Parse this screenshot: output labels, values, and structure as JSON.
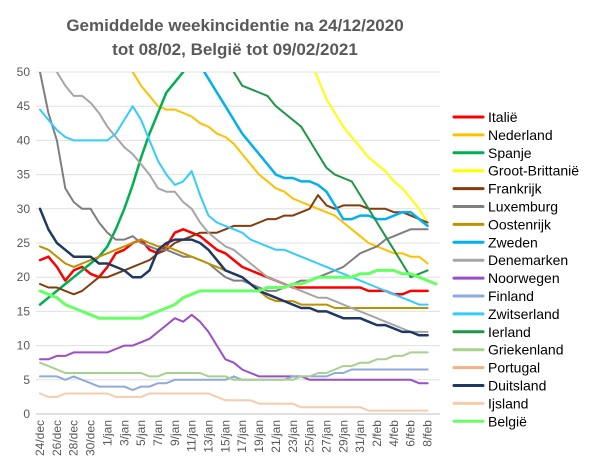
{
  "chart_data": {
    "type": "line",
    "title_lines": [
      "Gemiddelde weekincidentie  na 24/12/2020",
      "tot 08/02, België tot 09/02/2021"
    ],
    "x": [
      "24/dec",
      "25/dec",
      "26/dec",
      "27/dec",
      "28/dec",
      "29/dec",
      "30/dec",
      "31/dec",
      "1/jan",
      "2/jan",
      "3/jan",
      "4/jan",
      "5/jan",
      "6/jan",
      "7/jan",
      "8/jan",
      "9/jan",
      "10/jan",
      "11/jan",
      "12/jan",
      "13/jan",
      "14/jan",
      "15/jan",
      "16/jan",
      "17/jan",
      "18/jan",
      "19/jan",
      "20/jan",
      "21/jan",
      "22/jan",
      "23/jan",
      "24/jan",
      "25/jan",
      "26/jan",
      "27/jan",
      "28/jan",
      "29/jan",
      "30/jan",
      "31/jan",
      "1/feb",
      "2/feb",
      "3/feb",
      "4/feb",
      "5/feb",
      "6/feb",
      "7/feb",
      "8/feb",
      "9/feb"
    ],
    "x_tick_labels": [
      "24/dec",
      "26/dec",
      "28/dec",
      "30/dec",
      "1/jan",
      "3/jan",
      "5/jan",
      "7/jan",
      "9/jan",
      "11/jan",
      "13/jan",
      "15/jan",
      "17/jan",
      "19/jan",
      "21/jan",
      "23/jan",
      "25/jan",
      "27/jan",
      "29/jan",
      "31/jan",
      "2/feb",
      "4/feb",
      "6/feb",
      "8/feb"
    ],
    "ylim": [
      0,
      50
    ],
    "y_ticks": [
      0,
      5,
      10,
      15,
      20,
      25,
      30,
      35,
      40,
      45,
      50
    ],
    "grid": "horizontal",
    "legend_position": "right",
    "series": [
      {
        "name": "Italië",
        "color": "#ff0000",
        "width": 2.5,
        "values": [
          22.5,
          23,
          21.5,
          19.5,
          21,
          21.5,
          20.5,
          20,
          21.5,
          23.5,
          24,
          25,
          25.5,
          24,
          23.5,
          24.5,
          26.5,
          27,
          26.5,
          26,
          25,
          24,
          23.5,
          22.5,
          21.5,
          21,
          20.5,
          20,
          19.5,
          19,
          18.5,
          18.5,
          18.5,
          18.5,
          18.5,
          18.5,
          18.5,
          18.5,
          18.5,
          18,
          18,
          18,
          17.5,
          17.5,
          18,
          18,
          18,
          null
        ]
      },
      {
        "name": "Nederland",
        "color": "#ffc000",
        "width": 2,
        "values": [
          null,
          null,
          null,
          null,
          null,
          null,
          null,
          null,
          null,
          null,
          52,
          50,
          48,
          46.5,
          45,
          44.5,
          44.5,
          44,
          43.5,
          42.5,
          42,
          41,
          40.5,
          39.5,
          38,
          36.5,
          35,
          34,
          33,
          32.5,
          31.5,
          31,
          30.5,
          30,
          29.5,
          29,
          28,
          27,
          26,
          25,
          24.5,
          24,
          23.5,
          23.5,
          23,
          23,
          22,
          null
        ]
      },
      {
        "name": "Spanje",
        "color": "#00b050",
        "width": 2.5,
        "values": [
          16,
          17,
          18,
          19,
          20,
          21,
          22,
          23,
          24.5,
          27,
          30,
          33.5,
          37.5,
          41,
          44,
          47,
          48.5,
          50,
          52,
          null,
          null,
          null,
          null,
          null,
          null,
          null,
          null,
          null,
          null,
          null,
          null,
          null,
          null,
          null,
          null,
          null,
          null,
          null,
          null,
          null,
          null,
          null,
          null,
          null,
          null,
          null,
          null,
          null
        ]
      },
      {
        "name": "Groot-Brittanië",
        "color": "#ffff00",
        "width": 2,
        "values": [
          null,
          null,
          null,
          null,
          null,
          null,
          null,
          null,
          null,
          null,
          null,
          null,
          null,
          null,
          null,
          null,
          null,
          null,
          null,
          null,
          null,
          null,
          null,
          null,
          null,
          null,
          null,
          null,
          null,
          null,
          null,
          null,
          52,
          49,
          46,
          44,
          42,
          40.5,
          39,
          37.5,
          36.5,
          35.5,
          34,
          33,
          31.5,
          30,
          28,
          null
        ]
      },
      {
        "name": "Frankrijk",
        "color": "#843c0c",
        "width": 2,
        "values": [
          19,
          18.5,
          18.5,
          18,
          17.5,
          18,
          19,
          20,
          20,
          20.5,
          21,
          21.5,
          22,
          22.5,
          23.5,
          24,
          25,
          25.5,
          26,
          26.5,
          26.5,
          26.5,
          27,
          27.5,
          27.5,
          27.5,
          28,
          28.5,
          28.5,
          29,
          29,
          29.5,
          30,
          32,
          30.5,
          30,
          30.5,
          30.5,
          30.5,
          30,
          30,
          30,
          29.5,
          29.5,
          29,
          28.5,
          28,
          null
        ]
      },
      {
        "name": "Luxemburg",
        "color": "#7f7f7f",
        "width": 2,
        "values": [
          50,
          44,
          40,
          33,
          31,
          30,
          30,
          28,
          26.5,
          25.5,
          25.5,
          26,
          25,
          24.5,
          24,
          24,
          23.5,
          23,
          23,
          22.5,
          22,
          21,
          20,
          19.5,
          19.5,
          19,
          18.5,
          18,
          18,
          18.5,
          19,
          19.5,
          19.5,
          20,
          20.5,
          21,
          21.5,
          22.5,
          23.5,
          24,
          24.5,
          25.5,
          26,
          26.5,
          27,
          27,
          27,
          null
        ]
      },
      {
        "name": "Oostenrijk",
        "color": "#bf9000",
        "width": 2,
        "values": [
          24.5,
          24,
          23,
          22,
          21.5,
          22,
          22.5,
          23,
          23.5,
          24,
          24.5,
          25,
          25.5,
          25,
          24.5,
          24.5,
          24,
          23.5,
          23,
          22.5,
          22,
          21.5,
          21,
          20.5,
          20,
          19,
          18,
          17,
          16.5,
          16.5,
          16.5,
          16,
          16,
          16,
          16,
          15.5,
          15.5,
          15.5,
          15.5,
          15.5,
          15.5,
          15.5,
          15.5,
          15.5,
          15.5,
          15.5,
          15.5,
          null
        ]
      },
      {
        "name": "Zweden",
        "color": "#00b0f0",
        "width": 2.5,
        "values": [
          null,
          null,
          null,
          null,
          null,
          null,
          null,
          null,
          null,
          null,
          null,
          null,
          null,
          null,
          null,
          null,
          null,
          null,
          52,
          51,
          49,
          47,
          45,
          43,
          41,
          39.5,
          38,
          36.5,
          35,
          34.5,
          34.5,
          34,
          34,
          33.5,
          32.5,
          30.5,
          28.5,
          28.5,
          29,
          29,
          28.5,
          28.5,
          29,
          29.5,
          29.5,
          28.5,
          27.5,
          null
        ]
      },
      {
        "name": "Denemarken",
        "color": "#a6a6a6",
        "width": 2,
        "values": [
          null,
          52,
          50,
          48,
          46.5,
          46.5,
          45.5,
          44,
          42,
          40.5,
          39,
          38,
          36.5,
          35,
          33,
          32.5,
          32.5,
          31,
          30,
          28,
          26.5,
          25.5,
          24.5,
          24,
          23,
          22,
          21,
          20,
          19.5,
          19,
          18.5,
          18,
          17.5,
          17,
          17,
          16.5,
          16,
          15.5,
          15,
          14.5,
          14,
          13.5,
          13,
          12.5,
          12,
          12,
          12,
          null
        ]
      },
      {
        "name": "Noorwegen",
        "color": "#9b4dca",
        "width": 2,
        "values": [
          8,
          8,
          8.5,
          8.5,
          9,
          9,
          9,
          9,
          9,
          9.5,
          10,
          10,
          10.5,
          11,
          12,
          13,
          14,
          13.5,
          14.5,
          13.5,
          12,
          10,
          8,
          7.5,
          6.5,
          6,
          5.5,
          5.5,
          5.5,
          5.5,
          5.5,
          5.5,
          5,
          5,
          5,
          5,
          5,
          5,
          5,
          5,
          5,
          5,
          5,
          5,
          5,
          4.5,
          4.5,
          null
        ]
      },
      {
        "name": "Finland",
        "color": "#8faadc",
        "width": 2,
        "values": [
          5.5,
          5.5,
          5.5,
          5,
          5.5,
          5,
          4.5,
          4,
          4,
          4,
          4,
          3.5,
          4,
          4,
          4.5,
          4.5,
          5,
          5,
          5,
          5,
          5,
          5,
          5,
          5.5,
          5,
          5,
          5,
          5,
          5,
          5,
          5.5,
          5.5,
          5.5,
          5.5,
          5.5,
          6,
          6,
          6.5,
          6.5,
          6.5,
          6.5,
          6.5,
          6.5,
          6.5,
          6.5,
          6.5,
          6.5,
          null
        ]
      },
      {
        "name": "Zwitserland",
        "color": "#33ccff",
        "width": 2,
        "values": [
          44.5,
          43,
          41.5,
          40.5,
          40,
          40,
          40,
          40,
          40,
          41,
          43,
          45,
          43,
          40,
          37,
          35,
          33.5,
          34,
          35.5,
          32,
          29,
          28,
          27.5,
          27,
          26.5,
          25.5,
          25,
          24.5,
          24,
          24,
          23.5,
          23,
          22.5,
          22,
          21.5,
          21,
          20.5,
          20,
          19.5,
          19,
          18.5,
          18,
          17.5,
          17,
          16.5,
          16,
          16,
          null
        ]
      },
      {
        "name": "Ierland",
        "color": "#1e9646",
        "width": 2,
        "values": [
          null,
          null,
          null,
          null,
          null,
          null,
          null,
          null,
          null,
          null,
          null,
          null,
          null,
          null,
          null,
          null,
          null,
          null,
          null,
          null,
          null,
          null,
          52,
          50,
          48,
          47.5,
          47,
          46.5,
          45,
          44,
          43,
          42,
          40,
          38,
          36,
          35,
          34.5,
          34,
          32,
          30,
          28,
          26,
          24,
          22,
          20,
          20.5,
          21,
          null
        ]
      },
      {
        "name": "Griekenland",
        "color": "#a9d18e",
        "width": 2,
        "values": [
          7.5,
          7,
          6.5,
          6,
          6,
          6,
          6,
          6,
          6,
          6,
          6,
          6,
          6,
          5.5,
          5.5,
          6,
          6,
          6,
          6,
          6,
          5.5,
          5.5,
          5.5,
          5,
          5,
          5,
          5,
          5,
          5,
          5,
          5,
          5.5,
          5.5,
          6,
          6,
          6.5,
          7,
          7,
          7.5,
          7.5,
          8,
          8,
          8.5,
          8.5,
          9,
          9,
          9,
          null
        ]
      },
      {
        "name": "Portugal",
        "color": "#f4b183",
        "width": 2,
        "values": [
          null,
          null,
          null,
          null,
          null,
          null,
          null,
          null,
          null,
          null,
          null,
          null,
          null,
          null,
          null,
          null,
          null,
          null,
          null,
          null,
          null,
          null,
          null,
          null,
          null,
          null,
          null,
          null,
          null,
          null,
          null,
          null,
          null,
          null,
          null,
          null,
          null,
          null,
          null,
          null,
          null,
          null,
          null,
          null,
          null,
          null,
          null,
          null
        ]
      },
      {
        "name": "Duitsland",
        "color": "#203864",
        "width": 2.5,
        "values": [
          30,
          27,
          25,
          24,
          23,
          23,
          23,
          22,
          22,
          21.5,
          21,
          20,
          20,
          21,
          24,
          25,
          25.5,
          25.5,
          25.5,
          25,
          24,
          22.5,
          21,
          20.5,
          20,
          19,
          18,
          17.5,
          17,
          16.5,
          16,
          15.5,
          15.5,
          15,
          15,
          14.5,
          14,
          14,
          14,
          13.5,
          13,
          13,
          12.5,
          12,
          12,
          11.5,
          11.5,
          null
        ]
      },
      {
        "name": "Ijsland",
        "color": "#f8cbad",
        "width": 2,
        "values": [
          3,
          2.5,
          2.5,
          3,
          3,
          3,
          3,
          3,
          3,
          2.5,
          2.5,
          2.5,
          2.5,
          3,
          3,
          3,
          3,
          3,
          3,
          3,
          3,
          2.5,
          2,
          2,
          2,
          2,
          1.5,
          1.5,
          1.5,
          1.5,
          1.5,
          1,
          1,
          1,
          1,
          1,
          1,
          1,
          1,
          0.5,
          0.5,
          0.5,
          0.5,
          0.5,
          0.5,
          0.5,
          0.5,
          null
        ]
      },
      {
        "name": "België",
        "color": "#66ff66",
        "width": 3,
        "values": [
          18,
          17.5,
          17,
          16,
          15.5,
          15,
          14.5,
          14,
          14,
          14,
          14,
          14,
          14,
          14.5,
          15,
          15.5,
          16,
          17,
          17.5,
          18,
          18,
          18,
          18,
          18,
          18,
          18,
          18,
          18.5,
          18.5,
          18.5,
          19,
          19,
          19.5,
          20,
          20,
          20,
          20,
          20,
          20.5,
          20.5,
          21,
          21,
          21,
          20.5,
          20.5,
          20,
          19.5,
          19
        ]
      }
    ]
  }
}
